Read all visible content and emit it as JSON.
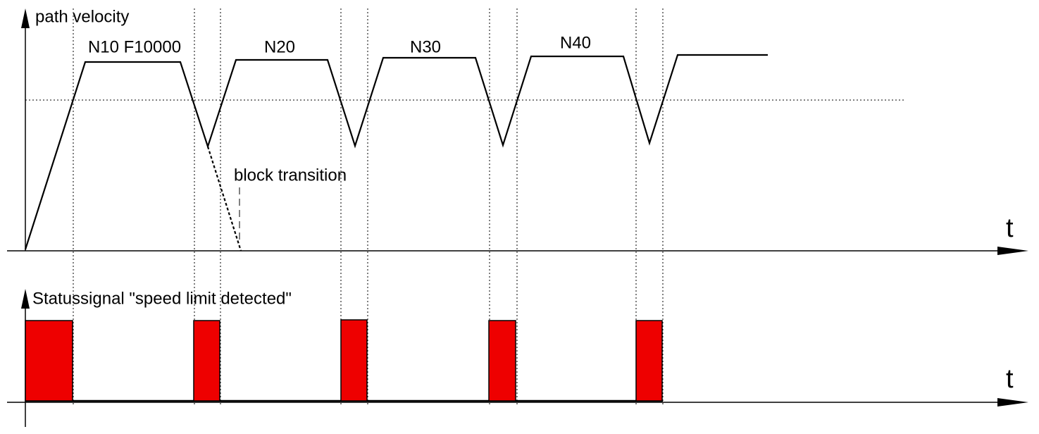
{
  "velocity_chart": {
    "axis_label": "path velocity",
    "time_label": "t",
    "blocks": [
      "N10 F10000",
      "N20",
      "N30",
      "N40"
    ],
    "annotation": "block transition"
  },
  "status_chart": {
    "axis_label": "Statussignal \"speed limit detected\"",
    "time_label": "t"
  }
}
